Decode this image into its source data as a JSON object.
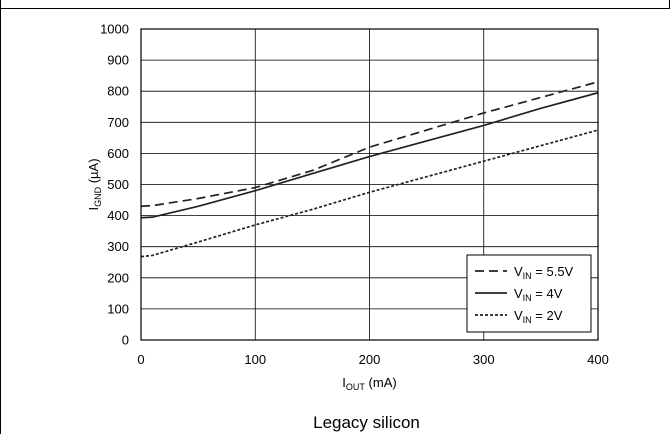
{
  "caption": "Legacy silicon",
  "chart_data": {
    "type": "line",
    "title": "",
    "xlabel": {
      "main": "I",
      "sub": "OUT",
      "unit": " (mA)"
    },
    "ylabel": {
      "main": "I",
      "sub": "GND",
      "unit": " (µA)"
    },
    "xlim": [
      0,
      400
    ],
    "ylim": [
      0,
      1000
    ],
    "xticks": [
      0,
      100,
      200,
      300,
      400
    ],
    "yticks": [
      0,
      100,
      200,
      300,
      400,
      500,
      600,
      700,
      800,
      900,
      1000
    ],
    "grid": true,
    "legend_position": "bottom-right",
    "series": [
      {
        "name": {
          "main": "V",
          "sub": "IN",
          "rest": " = 5.5V"
        },
        "style": "dashed",
        "x": [
          0,
          10,
          50,
          100,
          150,
          200,
          250,
          300,
          350,
          400
        ],
        "y": [
          430,
          432,
          455,
          490,
          545,
          620,
          675,
          730,
          780,
          830
        ]
      },
      {
        "name": {
          "main": "V",
          "sub": "IN",
          "rest": " = 4V"
        },
        "style": "solid",
        "x": [
          0,
          10,
          50,
          100,
          150,
          200,
          250,
          300,
          350,
          400
        ],
        "y": [
          393,
          395,
          430,
          480,
          535,
          590,
          640,
          690,
          745,
          795
        ]
      },
      {
        "name": {
          "main": "V",
          "sub": "IN",
          "rest": " = 2V"
        },
        "style": "dotted",
        "x": [
          0,
          10,
          50,
          100,
          150,
          200,
          250,
          300,
          350,
          400
        ],
        "y": [
          268,
          272,
          315,
          370,
          420,
          475,
          525,
          575,
          625,
          675
        ]
      }
    ]
  }
}
